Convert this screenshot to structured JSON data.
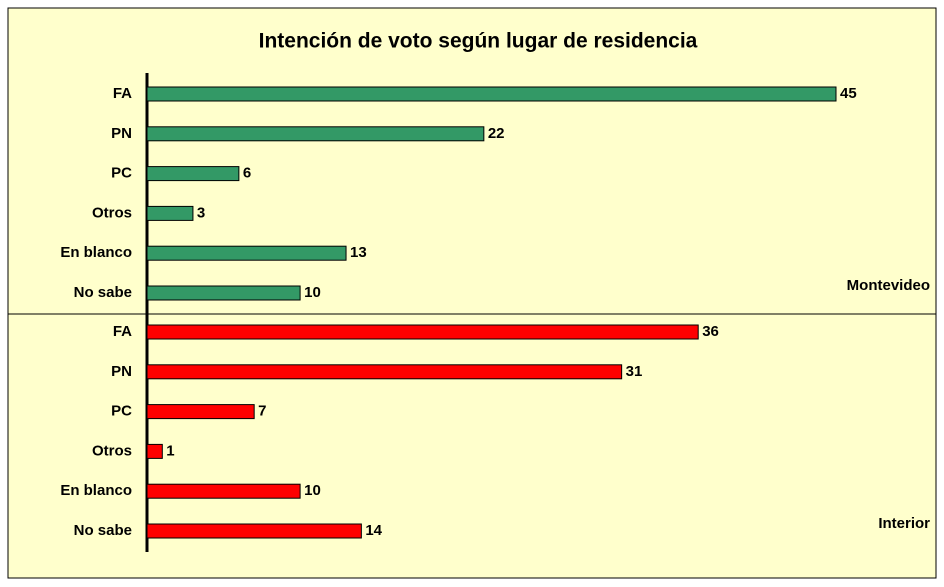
{
  "chart_data": {
    "type": "bar",
    "title": "Intención de voto según lugar de residencia",
    "groups": [
      {
        "name": "Montevideo",
        "color": "#339966",
        "categories": [
          "FA",
          "PN",
          "PC",
          "Otros",
          "En blanco",
          "No sabe"
        ],
        "values": [
          45,
          22,
          6,
          3,
          13,
          10
        ]
      },
      {
        "name": "Interior",
        "color": "#ff0000",
        "categories": [
          "FA",
          "PN",
          "PC",
          "Otros",
          "En blanco",
          "No sabe"
        ],
        "values": [
          36,
          31,
          7,
          1,
          10,
          14
        ]
      }
    ]
  }
}
